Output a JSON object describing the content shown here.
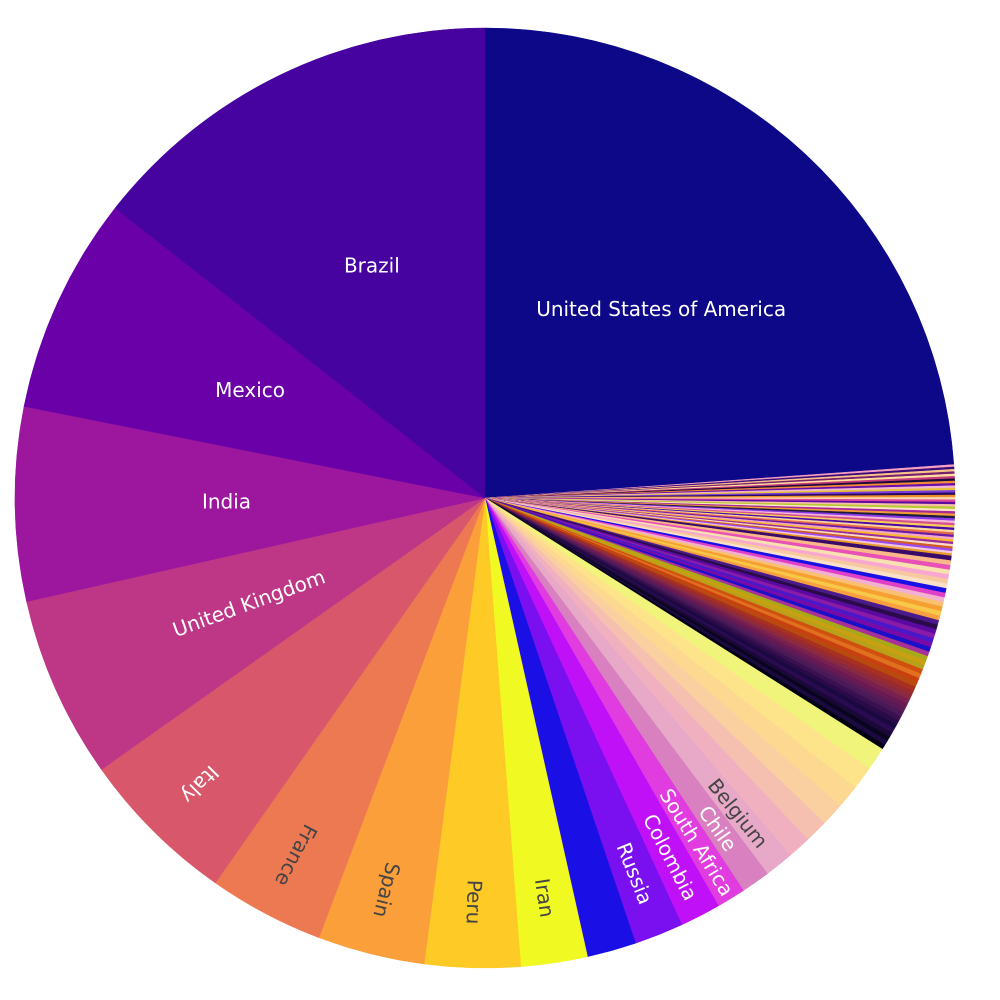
{
  "chart_data": {
    "type": "pie",
    "direction": "clockwise",
    "start_angle_deg": 0,
    "slices": [
      {
        "label": "United States of America",
        "value": 24.0,
        "color": "#0d0887",
        "text_color": "#ffffff",
        "show_label": true
      },
      {
        "label": "",
        "value": 0.08,
        "color": "#f6a0c0",
        "show_label": false
      },
      {
        "label": "",
        "value": 0.08,
        "color": "#3b0a7a",
        "show_label": false
      },
      {
        "label": "",
        "value": 0.08,
        "color": "#f7c48a",
        "show_label": false
      },
      {
        "label": "",
        "value": 0.08,
        "color": "#7a1e6e",
        "show_label": false
      },
      {
        "label": "",
        "value": 0.08,
        "color": "#fde0a0",
        "show_label": false
      },
      {
        "label": "",
        "value": 0.08,
        "color": "#c73a7a",
        "show_label": false
      },
      {
        "label": "",
        "value": 0.08,
        "color": "#1a0a3a",
        "show_label": false
      },
      {
        "label": "",
        "value": 0.08,
        "color": "#f28a3a",
        "show_label": false
      },
      {
        "label": "",
        "value": 0.08,
        "color": "#6a0ea8",
        "show_label": false
      },
      {
        "label": "",
        "value": 0.08,
        "color": "#f4b6d2",
        "show_label": false
      },
      {
        "label": "",
        "value": 0.08,
        "color": "#e6c23a",
        "show_label": false
      },
      {
        "label": "",
        "value": 0.08,
        "color": "#7a3ae0",
        "show_label": false
      },
      {
        "label": "",
        "value": 0.08,
        "color": "#2a0a5a",
        "show_label": false
      },
      {
        "label": "",
        "value": 0.08,
        "color": "#f0902a",
        "show_label": false
      },
      {
        "label": "",
        "value": 0.08,
        "color": "#f8d8b0",
        "show_label": false
      },
      {
        "label": "",
        "value": 0.08,
        "color": "#e0479a",
        "show_label": false
      },
      {
        "label": "",
        "value": 0.08,
        "color": "#5a0aa0",
        "show_label": false
      },
      {
        "label": "",
        "value": 0.08,
        "color": "#f8c0a8",
        "show_label": false
      },
      {
        "label": "",
        "value": 0.08,
        "color": "#b8c830",
        "show_label": false
      },
      {
        "label": "",
        "value": 0.08,
        "color": "#fbe6c8",
        "show_label": false
      },
      {
        "label": "",
        "value": 0.08,
        "color": "#a8289a",
        "show_label": false
      },
      {
        "label": "",
        "value": 0.08,
        "color": "#f29a3a",
        "show_label": false
      },
      {
        "label": "",
        "value": 0.08,
        "color": "#1a1a3a",
        "show_label": false
      },
      {
        "label": "",
        "value": 0.08,
        "color": "#8a3ae8",
        "show_label": false
      },
      {
        "label": "",
        "value": 0.08,
        "color": "#f5b8d8",
        "show_label": false
      },
      {
        "label": "",
        "value": 0.08,
        "color": "#d45090",
        "show_label": false
      },
      {
        "label": "",
        "value": 0.08,
        "color": "#f7ce5a",
        "show_label": false
      },
      {
        "label": "",
        "value": 0.08,
        "color": "#4a0aa8",
        "show_label": false
      },
      {
        "label": "",
        "value": 0.08,
        "color": "#fad8a0",
        "show_label": false
      },
      {
        "label": "",
        "value": 0.08,
        "color": "#e86a48",
        "show_label": false
      },
      {
        "label": "",
        "value": 0.08,
        "color": "#6a1aa8",
        "show_label": false
      },
      {
        "label": "",
        "value": 0.08,
        "color": "#f4a8c8",
        "show_label": false
      },
      {
        "label": "",
        "value": 0.08,
        "color": "#f8b830",
        "show_label": false
      },
      {
        "label": "",
        "value": 0.08,
        "color": "#9a2aa0",
        "show_label": false
      },
      {
        "label": "",
        "value": 0.08,
        "color": "#fbdcc0",
        "show_label": false
      },
      {
        "label": "",
        "value": 0.08,
        "color": "#d05a2a",
        "show_label": false
      },
      {
        "label": "",
        "value": 0.08,
        "color": "#9a4af0",
        "show_label": false
      },
      {
        "label": "",
        "value": 0.08,
        "color": "#f6c8e0",
        "show_label": false
      },
      {
        "label": "",
        "value": 0.08,
        "color": "#e89a2a",
        "show_label": false
      },
      {
        "label": "",
        "value": 0.16,
        "color": "#3a0a6a",
        "show_label": false
      },
      {
        "label": "",
        "value": 0.16,
        "color": "#f8b88a",
        "show_label": false
      },
      {
        "label": "",
        "value": 0.16,
        "color": "#e850b8",
        "show_label": false
      },
      {
        "label": "",
        "value": 0.16,
        "color": "#f8e0b0",
        "show_label": false
      },
      {
        "label": "",
        "value": 0.16,
        "color": "#f8a8d0",
        "show_label": false
      },
      {
        "label": "",
        "value": 0.16,
        "color": "#f8c8a0",
        "show_label": false
      },
      {
        "label": "",
        "value": 0.16,
        "color": "#fbe0c8",
        "show_label": false
      },
      {
        "label": "",
        "value": 0.16,
        "color": "#1a10e6",
        "show_label": false
      },
      {
        "label": "",
        "value": 0.16,
        "color": "#e040c8",
        "show_label": false
      },
      {
        "label": "",
        "value": 0.16,
        "color": "#f4b0d0",
        "show_label": false
      },
      {
        "label": "",
        "value": 0.16,
        "color": "#f8c070",
        "show_label": false
      },
      {
        "label": "",
        "value": 0.16,
        "color": "#f5a030",
        "show_label": false
      },
      {
        "label": "",
        "value": 0.16,
        "color": "#f8c848",
        "show_label": false
      },
      {
        "label": "",
        "value": 0.16,
        "color": "#f8a040",
        "show_label": false
      },
      {
        "label": "",
        "value": 0.16,
        "color": "#4a1a8a",
        "show_label": false
      },
      {
        "label": "",
        "value": 0.16,
        "color": "#2a0a4a",
        "show_label": false
      },
      {
        "label": "",
        "value": 0.16,
        "color": "#5a0aa0",
        "show_label": false
      },
      {
        "label": "",
        "value": 0.16,
        "color": "#8a1aa8",
        "show_label": false
      },
      {
        "label": "",
        "value": 0.16,
        "color": "#4a18c8",
        "show_label": false
      },
      {
        "label": "",
        "value": 0.16,
        "color": "#7a0aa8",
        "show_label": false
      },
      {
        "label": "",
        "value": 0.16,
        "color": "#1a10c8",
        "show_label": false
      },
      {
        "label": "",
        "value": 0.16,
        "color": "#a83098",
        "show_label": false
      },
      {
        "label": "",
        "value": 0.16,
        "color": "#a8a81a",
        "show_label": false
      },
      {
        "label": "",
        "value": 0.16,
        "color": "#c8a010",
        "show_label": false
      },
      {
        "label": "",
        "value": 0.16,
        "color": "#b8a01a",
        "show_label": false
      },
      {
        "label": "",
        "value": 0.16,
        "color": "#d05010",
        "show_label": false
      },
      {
        "label": "",
        "value": 0.16,
        "color": "#e07020",
        "show_label": false
      },
      {
        "label": "",
        "value": 0.16,
        "color": "#c84010",
        "show_label": false
      },
      {
        "label": "",
        "value": 0.16,
        "color": "#b84a10",
        "show_label": false
      },
      {
        "label": "",
        "value": 0.16,
        "color": "#a83020",
        "show_label": false
      },
      {
        "label": "",
        "value": 0.16,
        "color": "#9a2a30",
        "show_label": false
      },
      {
        "label": "",
        "value": 0.16,
        "color": "#8a2a40",
        "show_label": false
      },
      {
        "label": "",
        "value": 0.16,
        "color": "#7a2050",
        "show_label": false
      },
      {
        "label": "",
        "value": 0.16,
        "color": "#6a1a50",
        "show_label": false
      },
      {
        "label": "",
        "value": 0.16,
        "color": "#5a1a58",
        "show_label": false
      },
      {
        "label": "",
        "value": 0.16,
        "color": "#4a1a58",
        "show_label": false
      },
      {
        "label": "",
        "value": 0.16,
        "color": "#3a1050",
        "show_label": false
      },
      {
        "label": "",
        "value": 0.16,
        "color": "#2a0a48",
        "show_label": false
      },
      {
        "label": "",
        "value": 0.16,
        "color": "#1a0840",
        "show_label": false
      },
      {
        "label": "",
        "value": 0.16,
        "color": "#2a0a50",
        "show_label": false
      },
      {
        "label": "",
        "value": 0.16,
        "color": "#1a0838",
        "show_label": false
      },
      {
        "label": "",
        "value": 0.16,
        "color": "#0a0420",
        "show_label": false
      },
      {
        "label": "",
        "value": 0.16,
        "color": "#1a0a40",
        "show_label": false
      },
      {
        "label": "",
        "value": 0.16,
        "color": "#000010",
        "show_label": false
      },
      {
        "label": "",
        "value": 0.8,
        "color": "#f0f47a",
        "show_label": false
      },
      {
        "label": "",
        "value": 0.8,
        "color": "#fde48a",
        "show_label": false
      },
      {
        "label": "",
        "value": 0.8,
        "color": "#fcd890",
        "show_label": false
      },
      {
        "label": "",
        "value": 0.8,
        "color": "#fad0a0",
        "show_label": false
      },
      {
        "label": "",
        "value": 0.8,
        "color": "#f6c0b0",
        "show_label": false
      },
      {
        "label": "",
        "value": 0.8,
        "color": "#f0b0c0",
        "show_label": false
      },
      {
        "label": "Belgium",
        "value": 1.0,
        "color": "#e8a8c8",
        "text_color": "#444444",
        "show_label": true
      },
      {
        "label": "Chile",
        "value": 1.0,
        "color": "#d880c0",
        "text_color": "#ffffff",
        "show_label": true
      },
      {
        "label": "South Africa",
        "value": 1.0,
        "color": "#e03ce0",
        "text_color": "#ffffff",
        "show_label": true
      },
      {
        "label": "Colombia",
        "value": 1.4,
        "color": "#c010f8",
        "text_color": "#ffffff",
        "show_label": true
      },
      {
        "label": "Russia",
        "value": 1.7,
        "color": "#7a10f0",
        "text_color": "#ffffff",
        "show_label": true
      },
      {
        "label": "Russia",
        "value": 1.7,
        "color": "#1a10e6",
        "text_color": "#ffffff",
        "show_label": true
      },
      {
        "label": "Iran",
        "value": 2.3,
        "color": "#f0f921",
        "text_color": "#444444",
        "show_label": true
      },
      {
        "label": "Peru",
        "value": 3.3,
        "color": "#fdca26",
        "text_color": "#444444",
        "show_label": true
      },
      {
        "label": "Spain",
        "value": 3.7,
        "color": "#fb9f3a",
        "text_color": "#444444",
        "show_label": true
      },
      {
        "label": "France",
        "value": 4.0,
        "color": "#ed7953",
        "text_color": "#444444",
        "show_label": true
      },
      {
        "label": "Italy",
        "value": 5.5,
        "color": "#d8576b",
        "text_color": "#ffffff",
        "show_label": true
      },
      {
        "label": "United Kingdom",
        "value": 6.3,
        "color": "#bd3786",
        "text_color": "#ffffff",
        "show_label": true
      },
      {
        "label": "India",
        "value": 6.7,
        "color": "#9c179e",
        "text_color": "#ffffff",
        "show_label": true
      },
      {
        "label": "Mexico",
        "value": 7.5,
        "color": "#6a00a8",
        "text_color": "#ffffff",
        "show_label": true
      },
      {
        "label": "Brazil",
        "value": 14.5,
        "color": "#46039f",
        "text_color": "#ffffff",
        "show_label": true
      }
    ]
  }
}
